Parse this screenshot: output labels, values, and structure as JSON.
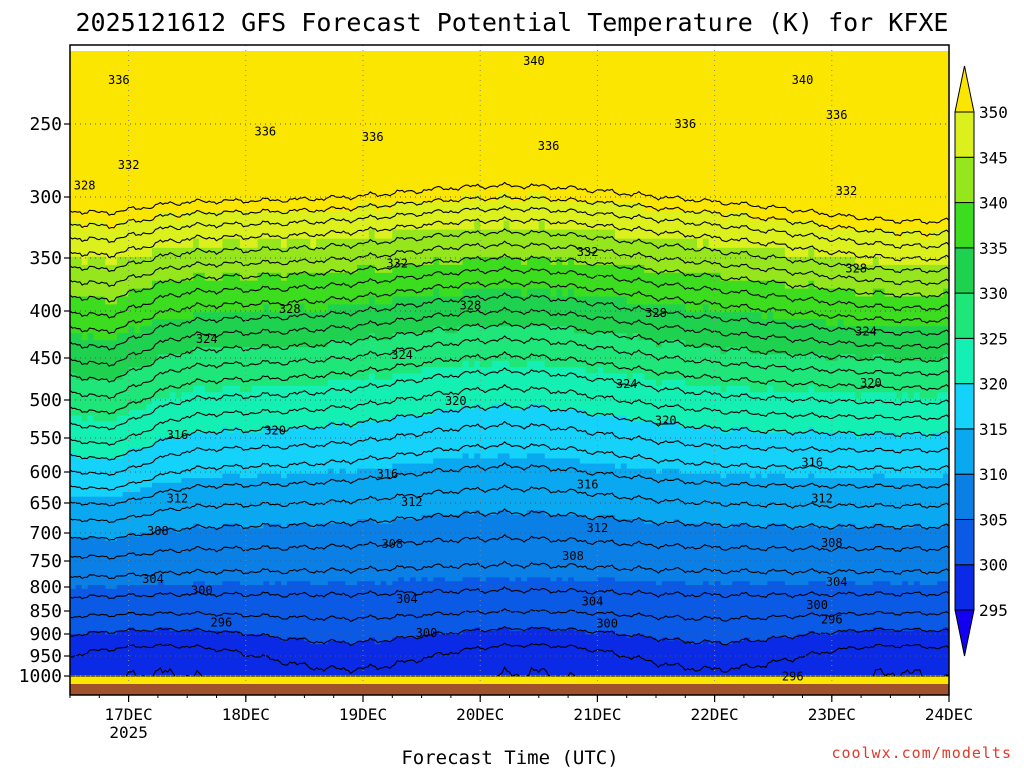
{
  "title": "2025121612 GFS Forecast Potential Temperature (K) for KFXE",
  "xlabel": "Forecast Time (UTC)",
  "credit": "coolwx.com/modelts",
  "colors": {
    "ground": "#a0522d",
    "contour": "#000000",
    "grid": "#555555"
  },
  "chart_data": {
    "type": "heatmap",
    "title": "2025121612 GFS Forecast Potential Temperature (K) for KFXE",
    "xlabel": "Forecast Time (UTC)",
    "ylabel": "",
    "y_axis": "pressure (hPa), inverted",
    "y_ticks": [
      250,
      300,
      350,
      400,
      450,
      500,
      550,
      600,
      650,
      700,
      750,
      800,
      850,
      900,
      950,
      1000
    ],
    "x_ticks": [
      {
        "label": "17DEC",
        "sub": "2025",
        "hour": 12
      },
      {
        "label": "18DEC",
        "sub": "",
        "hour": 36
      },
      {
        "label": "19DEC",
        "sub": "",
        "hour": 60
      },
      {
        "label": "20DEC",
        "sub": "",
        "hour": 84
      },
      {
        "label": "21DEC",
        "sub": "",
        "hour": 108
      },
      {
        "label": "22DEC",
        "sub": "",
        "hour": 132
      },
      {
        "label": "23DEC",
        "sub": "",
        "hour": 156
      },
      {
        "label": "24DEC",
        "sub": "",
        "hour": 180
      }
    ],
    "xlim_hours": [
      0,
      180
    ],
    "ylim_hPa": [
      1020,
      200
    ],
    "colorbar": {
      "levels": [
        295,
        300,
        305,
        310,
        315,
        320,
        325,
        330,
        335,
        340,
        345,
        350
      ],
      "colors": [
        "#1400f0",
        "#0a2ae6",
        "#0a5ae6",
        "#0a80e6",
        "#0aa8f0",
        "#14d2fa",
        "#14f0b4",
        "#1ee678",
        "#1ed250",
        "#3cdc1e",
        "#96e61e",
        "#dcf01e",
        "#fae600"
      ],
      "extend": "both"
    },
    "contour_interval_K": 2,
    "contour_labels": [
      {
        "value": 340,
        "hour": 95,
        "hPa": 207
      },
      {
        "value": 340,
        "hour": 150,
        "hPa": 220
      },
      {
        "value": 336,
        "hour": 10,
        "hPa": 220
      },
      {
        "value": 336,
        "hour": 40,
        "hPa": 255
      },
      {
        "value": 336,
        "hour": 62,
        "hPa": 259
      },
      {
        "value": 336,
        "hour": 98,
        "hPa": 265
      },
      {
        "value": 336,
        "hour": 126,
        "hPa": 250
      },
      {
        "value": 336,
        "hour": 157,
        "hPa": 244
      },
      {
        "value": 332,
        "hour": 12,
        "hPa": 278
      },
      {
        "value": 332,
        "hour": 67,
        "hPa": 355
      },
      {
        "value": 332,
        "hour": 106,
        "hPa": 345
      },
      {
        "value": 332,
        "hour": 159,
        "hPa": 296
      },
      {
        "value": 328,
        "hour": 3,
        "hPa": 292
      },
      {
        "value": 328,
        "hour": 45,
        "hPa": 398
      },
      {
        "value": 328,
        "hour": 82,
        "hPa": 395
      },
      {
        "value": 328,
        "hour": 120,
        "hPa": 402
      },
      {
        "value": 328,
        "hour": 161,
        "hPa": 360
      },
      {
        "value": 324,
        "hour": 28,
        "hPa": 430
      },
      {
        "value": 324,
        "hour": 68,
        "hPa": 447
      },
      {
        "value": 324,
        "hour": 114,
        "hPa": 481
      },
      {
        "value": 324,
        "hour": 163,
        "hPa": 422
      },
      {
        "value": 320,
        "hour": 42,
        "hPa": 540
      },
      {
        "value": 320,
        "hour": 79,
        "hPa": 501
      },
      {
        "value": 320,
        "hour": 122,
        "hPa": 527
      },
      {
        "value": 320,
        "hour": 164,
        "hPa": 480
      },
      {
        "value": 316,
        "hour": 22,
        "hPa": 546
      },
      {
        "value": 316,
        "hour": 65,
        "hPa": 603
      },
      {
        "value": 316,
        "hour": 106,
        "hPa": 620
      },
      {
        "value": 316,
        "hour": 152,
        "hPa": 586
      },
      {
        "value": 312,
        "hour": 22,
        "hPa": 643
      },
      {
        "value": 312,
        "hour": 70,
        "hPa": 648
      },
      {
        "value": 312,
        "hour": 108,
        "hPa": 692
      },
      {
        "value": 312,
        "hour": 154,
        "hPa": 643
      },
      {
        "value": 308,
        "hour": 18,
        "hPa": 697
      },
      {
        "value": 308,
        "hour": 66,
        "hPa": 720
      },
      {
        "value": 308,
        "hour": 103,
        "hPa": 741
      },
      {
        "value": 308,
        "hour": 156,
        "hPa": 718
      },
      {
        "value": 304,
        "hour": 17,
        "hPa": 785
      },
      {
        "value": 304,
        "hour": 69,
        "hPa": 825
      },
      {
        "value": 304,
        "hour": 107,
        "hPa": 830
      },
      {
        "value": 304,
        "hour": 157,
        "hPa": 790
      },
      {
        "value": 300,
        "hour": 27,
        "hPa": 807
      },
      {
        "value": 300,
        "hour": 73,
        "hPa": 898
      },
      {
        "value": 300,
        "hour": 110,
        "hPa": 877
      },
      {
        "value": 300,
        "hour": 153,
        "hPa": 838
      },
      {
        "value": 296,
        "hour": 31,
        "hPa": 875
      },
      {
        "value": 296,
        "hour": 156,
        "hPa": 868
      },
      {
        "value": 296,
        "hour": 148,
        "hPa": 1001
      }
    ]
  }
}
